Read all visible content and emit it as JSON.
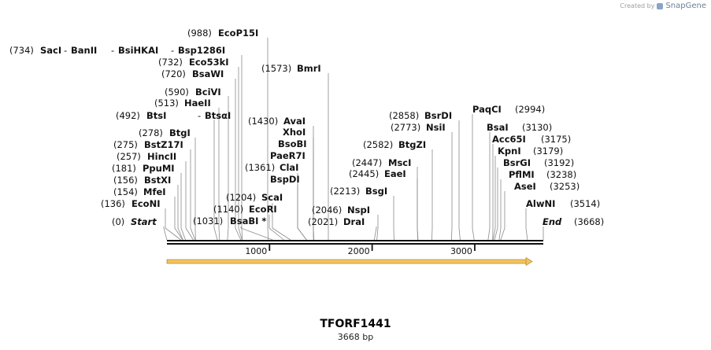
{
  "credit": {
    "prefix": "Created by",
    "brand": "SnapGene"
  },
  "plasmid": {
    "name": "TFORF1441",
    "length_label": "3668 bp",
    "length_bp": 3668
  },
  "axis": {
    "ticks": [
      1000,
      2000,
      3000
    ],
    "tick_labels": [
      "1000",
      "2000",
      "3000"
    ]
  },
  "features": [
    {
      "name": "ORF arrow",
      "start": 0,
      "end": 3668,
      "direction": "forward",
      "color": "#f0c05a"
    }
  ],
  "sites": [
    {
      "pos_label": "(0)",
      "name": "Start",
      "bp": 0,
      "kind": "end"
    },
    {
      "pos_label": "(136)",
      "name": "EcoNI",
      "bp": 136
    },
    {
      "pos_label": "(154)",
      "name": "MfeI",
      "bp": 154
    },
    {
      "pos_label": "(156)",
      "name": "BstXI",
      "bp": 156
    },
    {
      "pos_label": "(181)",
      "name": "PpuMI",
      "bp": 181
    },
    {
      "pos_label": "(257)",
      "name": "HincII",
      "bp": 257
    },
    {
      "pos_label": "(275)",
      "name": "BstZ17I",
      "bp": 275
    },
    {
      "pos_label": "(278)",
      "name": "BtgI",
      "bp": 278
    },
    {
      "pos_label": "(492)",
      "name": "BtsI",
      "name2": "BtsαI",
      "bp": 492
    },
    {
      "pos_label": "(513)",
      "name": "HaeII",
      "bp": 513
    },
    {
      "pos_label": "(590)",
      "name": "BciVI",
      "bp": 590
    },
    {
      "pos_label": "(720)",
      "name": "BsaWI",
      "bp": 720
    },
    {
      "pos_label": "(732)",
      "name": "Eco53kI",
      "bp": 732
    },
    {
      "pos_label": "(734)",
      "name": "SacI",
      "extra": [
        "BanII",
        "BsiHKAI",
        "Bsp1286I"
      ],
      "bp": 734
    },
    {
      "pos_label": "(988)",
      "name": "EcoP15I",
      "bp": 988
    },
    {
      "pos_label": "(1031)",
      "name": "BsaBI *",
      "bp": 1031
    },
    {
      "pos_label": "(1140)",
      "name": "EcoRI",
      "bp": 1140
    },
    {
      "pos_label": "(1204)",
      "name": "ScaI",
      "bp": 1204
    },
    {
      "pos_label": "(1361)",
      "name": "ClaI",
      "bp": 1361
    },
    {
      "name": "BspDI",
      "bp": 1361
    },
    {
      "name": "PaeR7I",
      "bp": 1430
    },
    {
      "name": "BsoBI",
      "bp": 1430
    },
    {
      "name": "XhoI",
      "bp": 1430
    },
    {
      "pos_label": "(1430)",
      "name": "AvaI",
      "bp": 1430
    },
    {
      "pos_label": "(1573)",
      "name": "BmrI",
      "bp": 1573
    },
    {
      "pos_label": "(2021)",
      "name": "DraI",
      "bp": 2021
    },
    {
      "pos_label": "(2046)",
      "name": "NspI",
      "bp": 2046
    },
    {
      "pos_label": "(2213)",
      "name": "BsgI",
      "bp": 2213
    },
    {
      "pos_label": "(2445)",
      "name": "EaeI",
      "bp": 2445
    },
    {
      "pos_label": "(2447)",
      "name": "MscI",
      "bp": 2447
    },
    {
      "pos_label": "(2582)",
      "name": "BtgZI",
      "bp": 2582
    },
    {
      "pos_label": "(2773)",
      "name": "NsiI",
      "bp": 2773
    },
    {
      "pos_label": "(2858)",
      "name": "BsrDI",
      "bp": 2858
    },
    {
      "pos_label": "(2994)",
      "name": "PaqCI",
      "bp": 2994,
      "pos_right": true
    },
    {
      "pos_label": "(3130)",
      "name": "BsaI",
      "bp": 3130,
      "pos_right": true
    },
    {
      "pos_label": "(3175)",
      "name": "Acc65I",
      "bp": 3175,
      "pos_right": true
    },
    {
      "pos_label": "(3179)",
      "name": "KpnI",
      "bp": 3179,
      "pos_right": true
    },
    {
      "pos_label": "(3192)",
      "name": "BsrGI",
      "bp": 3192,
      "pos_right": true
    },
    {
      "pos_label": "(3238)",
      "name": "PflMI",
      "bp": 3238,
      "pos_right": true
    },
    {
      "pos_label": "(3253)",
      "name": "AseI",
      "bp": 3253,
      "pos_right": true
    },
    {
      "pos_label": "(3514)",
      "name": "AlwNI",
      "bp": 3514,
      "pos_right": true
    },
    {
      "pos_label": "(3668)",
      "name": "End",
      "bp": 3668,
      "kind": "end",
      "pos_right": true
    }
  ]
}
